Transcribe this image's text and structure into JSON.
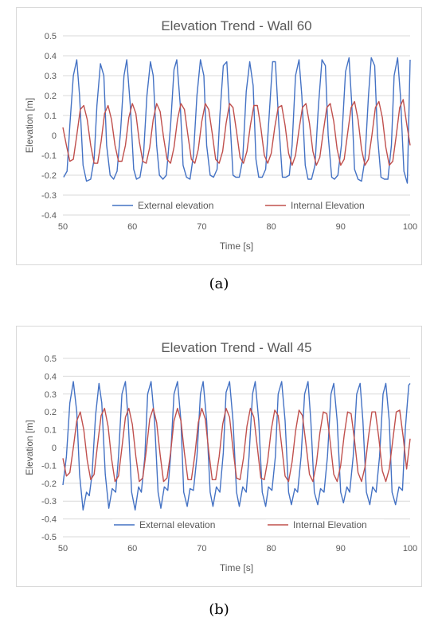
{
  "chart_data": [
    {
      "type": "line",
      "title": "Elevation Trend - Wall 60",
      "xlabel": "Time [s]",
      "ylabel": "Elevation  [m]",
      "xlim": [
        50,
        100
      ],
      "ylim": [
        -0.4,
        0.5
      ],
      "xticks": [
        50,
        60,
        70,
        80,
        90,
        100
      ],
      "yticks": [
        -0.4,
        -0.3,
        -0.2,
        -0.1,
        0,
        0.1,
        0.2,
        0.3,
        0.4,
        0.5
      ],
      "grid": true,
      "legend": "bottom",
      "series": [
        {
          "name": "External elevation",
          "color": "#4472c4",
          "x": [
            50.1,
            50.6,
            51.0,
            51.5,
            52.0,
            52.4,
            52.9,
            53.4,
            54.0,
            54.5,
            54.9,
            55.4,
            55.9,
            56.3,
            56.8,
            57.3,
            57.8,
            58.3,
            58.8,
            59.2,
            59.7,
            60.2,
            60.6,
            61.1,
            61.6,
            62.1,
            62.6,
            63.0,
            63.5,
            63.9,
            64.4,
            64.9,
            65.5,
            66.0,
            66.4,
            66.9,
            67.3,
            67.8,
            68.3,
            68.8,
            69.3,
            69.8,
            70.3,
            70.7,
            71.2,
            71.7,
            72.2,
            72.6,
            73.1,
            73.6,
            74.1,
            74.5,
            74.9,
            75.4,
            75.9,
            76.4,
            76.9,
            77.4,
            77.8,
            78.2,
            78.7,
            79.2,
            79.7,
            80.2,
            80.6,
            81.1,
            81.6,
            82.1,
            82.6,
            83.0,
            83.5,
            84.0,
            84.4,
            84.9,
            85.3,
            85.8,
            86.3,
            86.8,
            87.3,
            87.8,
            88.2,
            88.7,
            89.1,
            89.6,
            90.1,
            90.7,
            91.2,
            91.6,
            92.0,
            92.5,
            93.0,
            93.5,
            94.0,
            94.4,
            94.9,
            95.3,
            95.8,
            96.3,
            96.8,
            97.3,
            97.7,
            98.2,
            98.6,
            99.1,
            99.6,
            100.0
          ],
          "y": [
            -0.21,
            -0.18,
            0.05,
            0.3,
            0.38,
            0.2,
            -0.15,
            -0.23,
            -0.22,
            -0.12,
            0.15,
            0.36,
            0.3,
            -0.05,
            -0.2,
            -0.22,
            -0.18,
            0.02,
            0.3,
            0.38,
            0.15,
            -0.17,
            -0.22,
            -0.21,
            -0.1,
            0.2,
            0.37,
            0.3,
            -0.05,
            -0.2,
            -0.22,
            -0.2,
            0.05,
            0.33,
            0.38,
            0.15,
            -0.15,
            -0.21,
            -0.22,
            -0.1,
            0.2,
            0.38,
            0.3,
            -0.05,
            -0.2,
            -0.21,
            -0.17,
            0.1,
            0.35,
            0.37,
            0.05,
            -0.2,
            -0.21,
            -0.21,
            -0.12,
            0.22,
            0.37,
            0.25,
            -0.12,
            -0.21,
            -0.21,
            -0.17,
            0.1,
            0.37,
            0.37,
            0.05,
            -0.21,
            -0.21,
            -0.2,
            -0.05,
            0.3,
            0.38,
            0.2,
            -0.15,
            -0.22,
            -0.22,
            -0.15,
            0.15,
            0.38,
            0.35,
            0.0,
            -0.21,
            -0.22,
            -0.2,
            -0.05,
            0.32,
            0.39,
            0.15,
            -0.17,
            -0.22,
            -0.23,
            -0.12,
            0.2,
            0.39,
            0.35,
            0.0,
            -0.21,
            -0.22,
            -0.22,
            -0.05,
            0.3,
            0.39,
            0.2,
            -0.18,
            -0.24,
            0.38
          ]
        },
        {
          "name": "Internal Elevation",
          "color": "#c0504d",
          "x": [
            50.0,
            50.5,
            51.0,
            51.5,
            52.0,
            52.5,
            53.0,
            53.5,
            54.0,
            54.5,
            55.0,
            55.5,
            56.0,
            56.5,
            57.0,
            57.5,
            58.0,
            58.5,
            59.0,
            59.5,
            60.0,
            60.5,
            61.0,
            61.5,
            62.0,
            62.5,
            63.0,
            63.5,
            64.0,
            64.5,
            65.0,
            65.5,
            66.0,
            66.5,
            67.0,
            67.5,
            68.0,
            68.5,
            69.0,
            69.5,
            70.0,
            70.5,
            71.0,
            71.5,
            72.0,
            72.5,
            73.0,
            73.5,
            74.0,
            74.5,
            75.0,
            75.5,
            76.0,
            76.5,
            77.0,
            77.5,
            78.0,
            78.5,
            79.0,
            79.5,
            80.0,
            80.5,
            81.0,
            81.5,
            82.0,
            82.5,
            83.0,
            83.5,
            84.0,
            84.5,
            85.0,
            85.5,
            86.0,
            86.5,
            87.0,
            87.5,
            88.0,
            88.5,
            89.0,
            89.5,
            90.0,
            90.5,
            91.0,
            91.5,
            92.0,
            92.5,
            93.0,
            93.5,
            94.0,
            94.5,
            95.0,
            95.5,
            96.0,
            96.5,
            97.0,
            97.5,
            98.0,
            98.5,
            99.0,
            99.5,
            100.0
          ],
          "y": [
            0.04,
            -0.05,
            -0.13,
            -0.12,
            0.0,
            0.13,
            0.15,
            0.08,
            -0.05,
            -0.14,
            -0.14,
            -0.03,
            0.11,
            0.15,
            0.08,
            -0.05,
            -0.13,
            -0.13,
            -0.05,
            0.09,
            0.16,
            0.11,
            -0.03,
            -0.13,
            -0.14,
            -0.06,
            0.08,
            0.16,
            0.12,
            -0.01,
            -0.12,
            -0.14,
            -0.06,
            0.08,
            0.16,
            0.13,
            0.0,
            -0.12,
            -0.14,
            -0.07,
            0.07,
            0.16,
            0.13,
            0.01,
            -0.12,
            -0.14,
            -0.08,
            0.06,
            0.16,
            0.14,
            0.02,
            -0.11,
            -0.14,
            -0.08,
            0.05,
            0.15,
            0.15,
            0.04,
            -0.1,
            -0.14,
            -0.09,
            0.04,
            0.14,
            0.15,
            0.05,
            -0.09,
            -0.15,
            -0.1,
            0.03,
            0.14,
            0.16,
            0.06,
            -0.08,
            -0.15,
            -0.11,
            0.02,
            0.14,
            0.16,
            0.07,
            -0.07,
            -0.15,
            -0.12,
            0.01,
            0.14,
            0.17,
            0.08,
            -0.07,
            -0.15,
            -0.12,
            0.0,
            0.14,
            0.17,
            0.09,
            -0.06,
            -0.15,
            -0.13,
            0.0,
            0.14,
            0.18,
            0.06,
            -0.05
          ]
        }
      ]
    },
    {
      "type": "line",
      "title": "Elevation Trend - Wall 45",
      "xlabel": "Time [s]",
      "ylabel": "Elevation [m]",
      "xlim": [
        50,
        100
      ],
      "ylim": [
        -0.5,
        0.5
      ],
      "xticks": [
        50,
        60,
        70,
        80,
        90,
        100
      ],
      "yticks": [
        -0.5,
        -0.4,
        -0.3,
        -0.2,
        -0.1,
        0,
        0.1,
        0.2,
        0.3,
        0.4,
        0.5
      ],
      "grid": true,
      "legend": "bottom",
      "series": [
        {
          "name": "External elevation",
          "color": "#4472c4",
          "x": [
            50.0,
            50.5,
            51.0,
            51.5,
            52.0,
            52.4,
            52.9,
            53.4,
            53.8,
            54.2,
            54.7,
            55.2,
            55.6,
            56.1,
            56.6,
            57.1,
            57.6,
            58.0,
            58.5,
            59.0,
            59.4,
            59.9,
            60.4,
            60.9,
            61.3,
            61.8,
            62.2,
            62.7,
            63.2,
            63.7,
            64.1,
            64.6,
            65.1,
            65.5,
            66.0,
            66.5,
            67.0,
            67.4,
            67.9,
            68.3,
            68.8,
            69.3,
            69.8,
            70.2,
            70.7,
            71.2,
            71.6,
            72.1,
            72.6,
            73.1,
            73.5,
            74.0,
            74.5,
            75.0,
            75.4,
            75.9,
            76.4,
            76.8,
            77.3,
            77.7,
            78.2,
            78.7,
            79.2,
            79.6,
            80.1,
            80.6,
            81.0,
            81.5,
            82.0,
            82.5,
            82.9,
            83.4,
            83.8,
            84.3,
            84.8,
            85.3,
            85.7,
            86.2,
            86.7,
            87.1,
            87.6,
            88.1,
            88.6,
            89.0,
            89.5,
            90.0,
            90.4,
            90.9,
            91.3,
            91.8,
            92.3,
            92.8,
            93.2,
            93.7,
            94.2,
            94.6,
            95.1,
            95.6,
            96.1,
            96.5,
            97.0,
            97.4,
            97.9,
            98.4,
            98.9,
            99.3,
            99.8,
            100.0
          ],
          "y": [
            -0.21,
            -0.05,
            0.25,
            0.37,
            0.2,
            -0.15,
            -0.35,
            -0.25,
            -0.27,
            -0.15,
            0.18,
            0.36,
            0.25,
            -0.15,
            -0.34,
            -0.23,
            -0.25,
            -0.05,
            0.3,
            0.37,
            0.15,
            -0.25,
            -0.35,
            -0.22,
            -0.25,
            -0.05,
            0.3,
            0.37,
            0.15,
            -0.25,
            -0.34,
            -0.22,
            -0.24,
            -0.05,
            0.3,
            0.37,
            0.15,
            -0.25,
            -0.33,
            -0.23,
            -0.24,
            -0.05,
            0.3,
            0.37,
            0.15,
            -0.25,
            -0.33,
            -0.22,
            -0.25,
            -0.03,
            0.31,
            0.37,
            0.15,
            -0.25,
            -0.33,
            -0.22,
            -0.25,
            -0.05,
            0.3,
            0.37,
            0.15,
            -0.25,
            -0.33,
            -0.22,
            -0.24,
            -0.05,
            0.3,
            0.37,
            0.15,
            -0.25,
            -0.32,
            -0.23,
            -0.25,
            -0.05,
            0.3,
            0.37,
            0.15,
            -0.25,
            -0.32,
            -0.23,
            -0.25,
            -0.05,
            0.3,
            0.36,
            0.15,
            -0.25,
            -0.31,
            -0.22,
            -0.25,
            -0.05,
            0.3,
            0.36,
            0.15,
            -0.25,
            -0.32,
            -0.22,
            -0.25,
            -0.05,
            0.3,
            0.36,
            0.15,
            -0.25,
            -0.32,
            -0.22,
            -0.24,
            0.1,
            0.35,
            0.36
          ]
        },
        {
          "name": "Internal Elevation",
          "color": "#c0504d",
          "x": [
            50.0,
            50.5,
            51.0,
            51.5,
            52.0,
            52.5,
            53.0,
            53.5,
            54.0,
            54.5,
            55.0,
            55.5,
            56.0,
            56.5,
            57.0,
            57.5,
            58.0,
            58.5,
            59.0,
            59.5,
            60.0,
            60.5,
            61.0,
            61.5,
            62.0,
            62.5,
            63.0,
            63.5,
            64.0,
            64.5,
            65.0,
            65.5,
            66.0,
            66.5,
            67.0,
            67.5,
            68.0,
            68.5,
            69.0,
            69.5,
            70.0,
            70.5,
            71.0,
            71.5,
            72.0,
            72.5,
            73.0,
            73.5,
            74.0,
            74.5,
            75.0,
            75.5,
            76.0,
            76.5,
            77.0,
            77.5,
            78.0,
            78.5,
            79.0,
            79.5,
            80.0,
            80.5,
            81.0,
            81.5,
            82.0,
            82.5,
            83.0,
            83.5,
            84.0,
            84.5,
            85.0,
            85.5,
            86.0,
            86.5,
            87.0,
            87.5,
            88.0,
            88.5,
            89.0,
            89.5,
            90.0,
            90.5,
            91.0,
            91.5,
            92.0,
            92.5,
            93.0,
            93.5,
            94.0,
            94.5,
            95.0,
            95.5,
            96.0,
            96.5,
            97.0,
            97.5,
            98.0,
            98.5,
            99.0,
            99.5,
            100.0
          ],
          "y": [
            -0.06,
            -0.16,
            -0.14,
            0.0,
            0.15,
            0.2,
            0.1,
            -0.07,
            -0.18,
            -0.15,
            0.02,
            0.18,
            0.22,
            0.12,
            -0.06,
            -0.19,
            -0.16,
            0.0,
            0.17,
            0.22,
            0.13,
            -0.05,
            -0.19,
            -0.17,
            -0.02,
            0.16,
            0.22,
            0.14,
            -0.04,
            -0.19,
            -0.17,
            -0.03,
            0.15,
            0.22,
            0.15,
            -0.03,
            -0.18,
            -0.18,
            -0.04,
            0.14,
            0.22,
            0.16,
            -0.02,
            -0.18,
            -0.18,
            -0.05,
            0.13,
            0.22,
            0.17,
            -0.01,
            -0.17,
            -0.18,
            -0.06,
            0.12,
            0.22,
            0.17,
            0.0,
            -0.17,
            -0.18,
            -0.07,
            0.1,
            0.21,
            0.18,
            0.01,
            -0.16,
            -0.19,
            -0.08,
            0.09,
            0.21,
            0.18,
            0.02,
            -0.15,
            -0.19,
            -0.09,
            0.08,
            0.2,
            0.19,
            0.03,
            -0.15,
            -0.19,
            -0.1,
            0.07,
            0.2,
            0.19,
            0.04,
            -0.14,
            -0.19,
            -0.11,
            0.06,
            0.2,
            0.2,
            0.05,
            -0.13,
            -0.19,
            -0.12,
            0.04,
            0.2,
            0.21,
            0.06,
            -0.12,
            0.05
          ]
        }
      ]
    }
  ],
  "captions": {
    "a": "(a)",
    "b": "(b)"
  }
}
